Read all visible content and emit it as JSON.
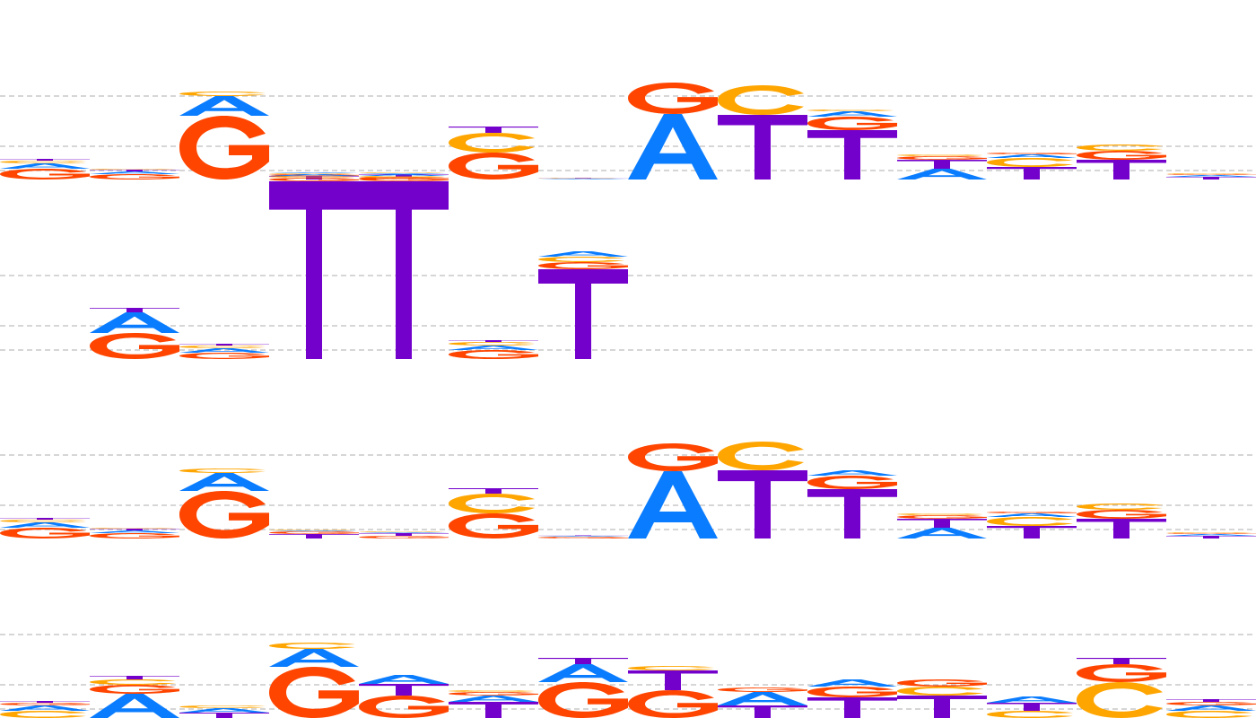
{
  "colors": {
    "A": "#0a7cff",
    "C": "#ffa500",
    "G": "#ff4500",
    "T": "#7400cc",
    "gridline": "#bdbdbd"
  },
  "logos": [
    {
      "id": "logo-1",
      "rows": [
        [
          [
            [
              "G",
              0.12
            ],
            [
              "A",
              0.06
            ],
            [
              "C",
              0.03
            ],
            [
              "T",
              0.02
            ]
          ],
          [
            [
              "G",
              0.06
            ],
            [
              "A",
              0.03
            ],
            [
              "T",
              0.02
            ],
            [
              "C",
              0.01
            ]
          ],
          [
            [
              "G",
              0.71
            ],
            [
              "A",
              0.22
            ],
            [
              "C",
              0.05
            ]
          ],
          [
            [
              "T",
              0.04
            ],
            [
              "G",
              0.02
            ],
            [
              "C",
              0.01
            ],
            [
              "A",
              0.01
            ]
          ],
          [
            [
              "G",
              0.03
            ],
            [
              "T",
              0.03
            ],
            [
              "A",
              0.01
            ],
            [
              "C",
              0.01
            ]
          ],
          [
            [
              "G",
              0.3
            ],
            [
              "C",
              0.22
            ],
            [
              "T",
              0.07
            ]
          ],
          [
            [
              "A",
              0.01
            ],
            [
              "T",
              0.005
            ],
            [
              "C",
              0.005
            ]
          ],
          [
            [
              "A",
              0.73
            ],
            [
              "G",
              0.35
            ]
          ],
          [
            [
              "T",
              0.72
            ],
            [
              "C",
              0.33
            ]
          ],
          [
            [
              "T",
              0.55
            ],
            [
              "G",
              0.15
            ],
            [
              "A",
              0.06
            ],
            [
              "C",
              0.02
            ]
          ],
          [
            [
              "A",
              0.12
            ],
            [
              "T",
              0.1
            ],
            [
              "G",
              0.04
            ],
            [
              "C",
              0.02
            ]
          ],
          [
            [
              "T",
              0.14
            ],
            [
              "C",
              0.1
            ],
            [
              "A",
              0.04
            ],
            [
              "G",
              0.02
            ]
          ],
          [
            [
              "T",
              0.22
            ],
            [
              "G",
              0.1
            ],
            [
              "C",
              0.07
            ]
          ],
          [
            [
              "T",
              0.03
            ],
            [
              "A",
              0.02
            ],
            [
              "G",
              0.01
            ],
            [
              "C",
              0.01
            ]
          ]
        ],
        [
          null,
          [
            [
              "G",
              0.29
            ],
            [
              "A",
              0.23
            ],
            [
              "T",
              0.05
            ]
          ],
          [
            [
              "G",
              0.07
            ],
            [
              "A",
              0.05
            ],
            [
              "C",
              0.03
            ],
            [
              "T",
              0.02
            ]
          ],
          [
            [
              "T",
              1.98
            ],
            [
              "G",
              0.04
            ],
            [
              "C",
              0.02
            ],
            [
              "A",
              0.02
            ]
          ],
          [
            [
              "T",
              1.98
            ],
            [
              "G",
              0.04
            ],
            [
              "C",
              0.02
            ],
            [
              "A",
              0.02
            ]
          ],
          [
            [
              "G",
              0.1
            ],
            [
              "A",
              0.05
            ],
            [
              "C",
              0.04
            ],
            [
              "T",
              0.02
            ]
          ],
          [
            [
              "T",
              1.0
            ],
            [
              "G",
              0.08
            ],
            [
              "C",
              0.06
            ],
            [
              "A",
              0.06
            ]
          ],
          null,
          null,
          null,
          null,
          null,
          null,
          null
        ]
      ]
    },
    {
      "id": "logo-2",
      "rows": [
        [
          [
            [
              "G",
              0.12
            ],
            [
              "A",
              0.06
            ],
            [
              "C",
              0.03
            ],
            [
              "T",
              0.02
            ]
          ],
          [
            [
              "G",
              0.06
            ],
            [
              "A",
              0.03
            ],
            [
              "T",
              0.02
            ],
            [
              "C",
              0.01
            ]
          ],
          [
            [
              "G",
              0.53
            ],
            [
              "A",
              0.2
            ],
            [
              "C",
              0.05
            ]
          ],
          [
            [
              "T",
              0.05
            ],
            [
              "G",
              0.03
            ],
            [
              "A",
              0.01
            ],
            [
              "C",
              0.01
            ]
          ],
          [
            [
              "G",
              0.03
            ],
            [
              "T",
              0.03
            ],
            [
              "A",
              0.01
            ],
            [
              "C",
              0.01
            ]
          ],
          [
            [
              "G",
              0.28
            ],
            [
              "C",
              0.22
            ],
            [
              "T",
              0.06
            ]
          ],
          [
            [
              "G",
              0.02
            ],
            [
              "A",
              0.01
            ],
            [
              "T",
              0.005
            ]
          ],
          [
            [
              "A",
              0.75
            ],
            [
              "G",
              0.31
            ]
          ],
          [
            [
              "T",
              0.76
            ],
            [
              "C",
              0.32
            ]
          ],
          [
            [
              "T",
              0.55
            ],
            [
              "G",
              0.15
            ],
            [
              "A",
              0.06
            ]
          ],
          [
            [
              "A",
              0.12
            ],
            [
              "T",
              0.1
            ],
            [
              "G",
              0.04
            ],
            [
              "C",
              0.02
            ]
          ],
          [
            [
              "T",
              0.14
            ],
            [
              "C",
              0.1
            ],
            [
              "A",
              0.04
            ],
            [
              "G",
              0.02
            ]
          ],
          [
            [
              "T",
              0.22
            ],
            [
              "G",
              0.1
            ],
            [
              "C",
              0.07
            ]
          ],
          [
            [
              "T",
              0.03
            ],
            [
              "A",
              0.02
            ],
            [
              "G",
              0.01
            ],
            [
              "C",
              0.01
            ]
          ]
        ]
      ]
    },
    {
      "id": "logo-3",
      "rows": [
        [
          [
            [
              "C",
              0.08
            ],
            [
              "A",
              0.06
            ],
            [
              "G",
              0.03
            ],
            [
              "T",
              0.02
            ]
          ],
          [
            [
              "A",
              0.27
            ],
            [
              "G",
              0.1
            ],
            [
              "C",
              0.06
            ],
            [
              "T",
              0.04
            ]
          ],
          [
            [
              "T",
              0.06
            ],
            [
              "A",
              0.05
            ],
            [
              "C",
              0.03
            ]
          ],
          [
            [
              "G",
              0.57
            ],
            [
              "A",
              0.2
            ],
            [
              "C",
              0.07
            ]
          ],
          [
            [
              "G",
              0.25
            ],
            [
              "T",
              0.13
            ],
            [
              "A",
              0.1
            ]
          ],
          [
            [
              "T",
              0.18
            ],
            [
              "A",
              0.07
            ],
            [
              "G",
              0.04
            ],
            [
              "C",
              0.02
            ]
          ],
          [
            [
              "G",
              0.4
            ],
            [
              "A",
              0.2
            ],
            [
              "T",
              0.07
            ]
          ],
          [
            [
              "G",
              0.31
            ],
            [
              "T",
              0.22
            ],
            [
              "C",
              0.05
            ]
          ],
          [
            [
              "T",
              0.14
            ],
            [
              "A",
              0.15
            ],
            [
              "G",
              0.05
            ]
          ],
          [
            [
              "T",
              0.23
            ],
            [
              "G",
              0.12
            ],
            [
              "A",
              0.08
            ]
          ],
          [
            [
              "T",
              0.25
            ],
            [
              "C",
              0.1
            ],
            [
              "G",
              0.08
            ]
          ],
          [
            [
              "C",
              0.08
            ],
            [
              "T",
              0.09
            ],
            [
              "A",
              0.07
            ]
          ],
          [
            [
              "C",
              0.4
            ],
            [
              "G",
              0.2
            ],
            [
              "T",
              0.07
            ]
          ],
          [
            [
              "C",
              0.08
            ],
            [
              "A",
              0.06
            ],
            [
              "G",
              0.04
            ],
            [
              "T",
              0.03
            ]
          ]
        ]
      ]
    }
  ]
}
